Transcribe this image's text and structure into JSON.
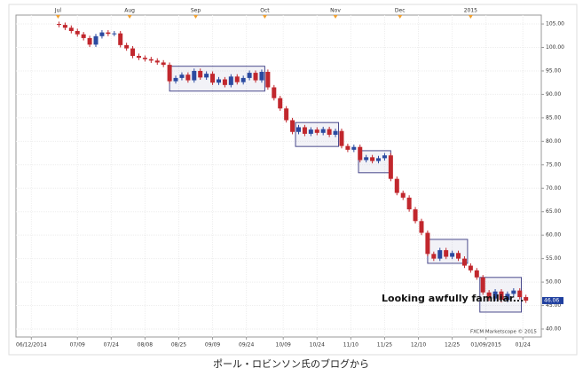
{
  "chart_data": {
    "type": "candlestick",
    "annotation": "Looking awfully familiar...",
    "watermark": "FXCM Marketscope © 2015",
    "up_color": "#2b4aa0",
    "down_color": "#c1272d",
    "box_color": "#4a4a8c",
    "grid": true,
    "xlim": [
      -5,
      166
    ],
    "ylim": [
      38.3,
      106.9
    ],
    "yticks": [
      {
        "value": 40,
        "label": "40.00"
      },
      {
        "value": 45,
        "label": "45.00"
      },
      {
        "value": 50,
        "label": "50.00"
      },
      {
        "value": 55,
        "label": "55.00"
      },
      {
        "value": 60,
        "label": "60.00"
      },
      {
        "value": 65,
        "label": "65.00"
      },
      {
        "value": 70,
        "label": "70.00"
      },
      {
        "value": 75,
        "label": "75.00"
      },
      {
        "value": 80,
        "label": "80.00"
      },
      {
        "value": 85,
        "label": "85.00"
      },
      {
        "value": 90,
        "label": "90.00"
      },
      {
        "value": 95,
        "label": "95.00"
      },
      {
        "value": 100,
        "label": "100.00"
      },
      {
        "value": 105,
        "label": "105.00"
      }
    ],
    "xticks": [
      {
        "value": 0,
        "label": "06/12/2014"
      },
      {
        "value": 15,
        "label": "07/09"
      },
      {
        "value": 26,
        "label": "07/24"
      },
      {
        "value": 37,
        "label": "08/08"
      },
      {
        "value": 48,
        "label": "08/25"
      },
      {
        "value": 59,
        "label": "09/09"
      },
      {
        "value": 70,
        "label": "09/24"
      },
      {
        "value": 82,
        "label": "10/09"
      },
      {
        "value": 93,
        "label": "10/24"
      },
      {
        "value": 104,
        "label": "11/10"
      },
      {
        "value": 115,
        "label": "11/25"
      },
      {
        "value": 126,
        "label": "12/10"
      },
      {
        "value": 137,
        "label": "12/25"
      },
      {
        "value": 148,
        "label": "01/09/2015"
      },
      {
        "value": 160,
        "label": "01/24"
      }
    ],
    "top_ticks": [
      {
        "value": 8.7,
        "label": "Jul"
      },
      {
        "value": 32,
        "label": "Aug"
      },
      {
        "value": 53.5,
        "label": "Sep"
      },
      {
        "value": 76,
        "label": "Oct"
      },
      {
        "value": 99,
        "label": "Nov"
      },
      {
        "value": 120,
        "label": "Dec"
      },
      {
        "value": 143,
        "label": "2015"
      }
    ],
    "highlights": [
      {
        "x": [
          45,
          76
        ],
        "y": [
          90.7,
          96.0
        ]
      },
      {
        "x": [
          86,
          100
        ],
        "y": [
          78.9,
          84.0
        ]
      },
      {
        "x": [
          106.5,
          117
        ],
        "y": [
          73.3,
          78.0
        ]
      },
      {
        "x": [
          129,
          142
        ],
        "y": [
          54.0,
          59.1
        ]
      },
      {
        "x": [
          146,
          159.5
        ],
        "y": [
          43.6,
          51.0
        ]
      }
    ],
    "x": [
      9,
      11,
      13,
      15,
      17,
      19,
      21,
      23,
      25,
      27,
      29,
      31,
      33,
      35,
      37,
      39,
      41,
      43,
      45,
      47,
      49,
      51,
      53,
      55,
      57,
      59,
      61,
      63,
      65,
      67,
      69,
      71,
      73,
      75,
      77,
      79,
      81,
      83,
      85,
      87,
      89,
      91,
      93,
      95,
      97,
      99,
      101,
      103,
      105,
      107,
      109,
      111,
      113,
      115,
      117,
      119,
      121,
      123,
      125,
      127,
      129,
      131,
      133,
      135,
      137,
      139,
      141,
      143,
      145,
      147,
      149,
      151,
      153,
      155,
      157,
      159,
      161
    ],
    "open": [
      105.0,
      104.8,
      104.2,
      103.5,
      102.8,
      102.0,
      100.6,
      102.4,
      103.2,
      102.9,
      103.0,
      100.5,
      99.8,
      98.2,
      97.8,
      97.5,
      97.2,
      96.8,
      96.3,
      92.8,
      93.5,
      94.2,
      93.0,
      95.0,
      93.6,
      94.4,
      92.5,
      93.2,
      92.0,
      93.8,
      92.6,
      93.5,
      94.6,
      93.0,
      94.8,
      91.5,
      89.2,
      87.0,
      84.5,
      82.0,
      83.0,
      81.6,
      82.5,
      81.8,
      82.6,
      81.4,
      82.2,
      79.0,
      78.2,
      78.8,
      76.0,
      76.6,
      75.8,
      76.4,
      77.0,
      72.0,
      69.0,
      68.0,
      65.5,
      63.0,
      60.5,
      56.0,
      55.0,
      56.8,
      55.4,
      56.2,
      55.0,
      53.5,
      52.5,
      51.0,
      47.8,
      46.5,
      48.0,
      46.2,
      47.5,
      48.2,
      46.8
    ],
    "high": [
      105.5,
      105.3,
      104.7,
      104.0,
      103.3,
      102.5,
      102.9,
      103.7,
      103.7,
      103.5,
      103.5,
      101.0,
      100.3,
      98.7,
      98.3,
      98.0,
      97.7,
      97.3,
      96.8,
      94.0,
      94.7,
      94.7,
      95.5,
      95.5,
      94.9,
      94.9,
      93.7,
      93.7,
      94.3,
      94.3,
      94.0,
      95.1,
      95.1,
      95.3,
      95.3,
      92.0,
      89.7,
      87.5,
      85.0,
      83.5,
      83.5,
      83.0,
      83.0,
      83.1,
      83.1,
      82.7,
      82.7,
      79.5,
      79.3,
      79.3,
      77.1,
      77.1,
      76.9,
      77.5,
      77.5,
      72.5,
      69.5,
      68.5,
      66.0,
      63.5,
      61.0,
      56.5,
      57.3,
      57.3,
      56.7,
      56.7,
      55.5,
      54.0,
      53.0,
      51.5,
      48.3,
      48.5,
      48.5,
      48.0,
      48.7,
      48.7,
      47.3
    ],
    "low": [
      104.3,
      103.7,
      103.0,
      102.3,
      101.5,
      100.1,
      100.1,
      101.9,
      102.4,
      102.4,
      100.0,
      99.3,
      97.7,
      97.3,
      97.0,
      96.7,
      96.3,
      95.8,
      92.3,
      92.3,
      93.0,
      92.5,
      92.5,
      93.1,
      93.1,
      92.0,
      92.0,
      91.5,
      91.5,
      92.1,
      92.1,
      93.0,
      92.5,
      92.5,
      91.0,
      88.7,
      86.5,
      84.0,
      81.5,
      81.5,
      81.1,
      81.1,
      81.3,
      81.3,
      80.9,
      80.9,
      78.5,
      77.7,
      77.7,
      75.5,
      75.5,
      75.3,
      75.3,
      75.9,
      71.5,
      68.5,
      67.5,
      65.0,
      62.5,
      60.0,
      55.5,
      54.5,
      54.5,
      54.9,
      54.9,
      54.5,
      53.0,
      52.0,
      50.5,
      47.3,
      46.0,
      46.0,
      45.7,
      45.7,
      47.0,
      46.3,
      45.56
    ],
    "close": [
      104.8,
      104.2,
      103.5,
      102.8,
      102.0,
      100.6,
      102.4,
      103.2,
      102.9,
      103.0,
      100.5,
      99.8,
      98.2,
      97.8,
      97.5,
      97.2,
      96.8,
      96.3,
      92.8,
      93.5,
      94.2,
      93.0,
      95.0,
      93.6,
      94.4,
      92.5,
      93.2,
      92.0,
      93.8,
      92.6,
      93.5,
      94.6,
      93.0,
      94.8,
      91.5,
      89.2,
      87.0,
      84.5,
      82.0,
      83.0,
      81.6,
      82.5,
      81.8,
      82.6,
      81.4,
      82.2,
      79.0,
      78.2,
      78.8,
      76.0,
      76.6,
      75.8,
      76.4,
      77.0,
      72.0,
      69.0,
      68.0,
      65.5,
      63.0,
      60.5,
      56.0,
      55.0,
      56.8,
      55.4,
      56.2,
      55.0,
      53.5,
      52.5,
      51.0,
      47.8,
      46.5,
      48.0,
      46.2,
      47.5,
      48.2,
      46.8,
      46.06
    ]
  },
  "caption": "ポール・ロビンソン氏のブログから"
}
